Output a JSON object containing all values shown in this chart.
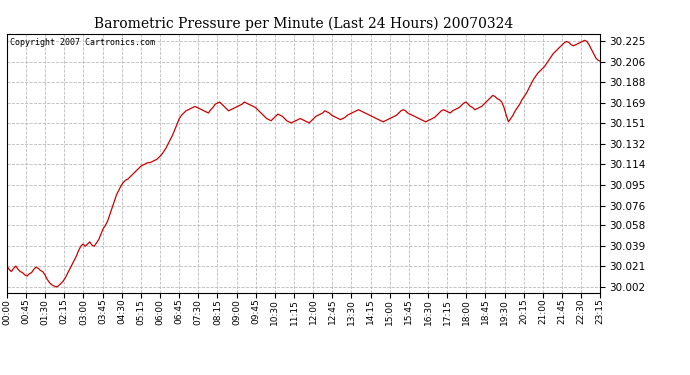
{
  "title": "Barometric Pressure per Minute (Last 24 Hours) 20070324",
  "copyright_text": "Copyright 2007 Cartronics.com",
  "line_color": "#cc0000",
  "background_color": "#ffffff",
  "plot_bg_color": "#ffffff",
  "grid_color": "#bbbbbb",
  "yticks": [
    30.002,
    30.021,
    30.039,
    30.058,
    30.076,
    30.095,
    30.114,
    30.132,
    30.151,
    30.169,
    30.188,
    30.206,
    30.225
  ],
  "ylim": [
    29.997,
    30.232
  ],
  "xtick_labels": [
    "00:00",
    "00:45",
    "01:30",
    "02:15",
    "03:00",
    "03:45",
    "04:30",
    "05:15",
    "06:00",
    "06:45",
    "07:30",
    "08:15",
    "09:00",
    "09:45",
    "10:30",
    "11:15",
    "12:00",
    "12:45",
    "13:30",
    "14:15",
    "15:00",
    "15:45",
    "16:30",
    "17:15",
    "18:00",
    "18:45",
    "19:30",
    "20:15",
    "21:00",
    "21:45",
    "22:30",
    "23:15"
  ],
  "pressure_data": [
    30.021,
    30.018,
    30.016,
    30.019,
    30.021,
    30.018,
    30.016,
    30.015,
    30.013,
    30.012,
    30.014,
    30.015,
    30.018,
    30.02,
    30.019,
    30.017,
    30.016,
    30.013,
    30.009,
    30.006,
    30.004,
    30.003,
    30.002,
    30.003,
    30.005,
    30.007,
    30.01,
    30.014,
    30.018,
    30.022,
    30.026,
    30.03,
    30.035,
    30.039,
    30.041,
    30.039,
    30.041,
    30.043,
    30.04,
    30.039,
    30.042,
    30.045,
    30.05,
    30.055,
    30.058,
    30.062,
    30.068,
    30.074,
    30.08,
    30.086,
    30.09,
    30.094,
    30.097,
    30.099,
    30.1,
    30.102,
    30.104,
    30.106,
    30.108,
    30.11,
    30.112,
    30.113,
    30.114,
    30.115,
    30.115,
    30.116,
    30.117,
    30.118,
    30.12,
    30.122,
    30.125,
    30.128,
    30.132,
    30.136,
    30.14,
    30.145,
    30.15,
    30.155,
    30.158,
    30.16,
    30.162,
    30.163,
    30.164,
    30.165,
    30.166,
    30.165,
    30.164,
    30.163,
    30.162,
    30.161,
    30.16,
    30.163,
    30.165,
    30.168,
    30.169,
    30.17,
    30.168,
    30.166,
    30.164,
    30.162,
    30.163,
    30.164,
    30.165,
    30.166,
    30.167,
    30.168,
    30.17,
    30.169,
    30.168,
    30.167,
    30.166,
    30.165,
    30.163,
    30.161,
    30.159,
    30.157,
    30.155,
    30.154,
    30.153,
    30.155,
    30.157,
    30.159,
    30.158,
    30.157,
    30.155,
    30.153,
    30.152,
    30.151,
    30.152,
    30.153,
    30.154,
    30.155,
    30.154,
    30.153,
    30.152,
    30.151,
    30.153,
    30.155,
    30.157,
    30.158,
    30.159,
    30.16,
    30.162,
    30.161,
    30.16,
    30.158,
    30.157,
    30.156,
    30.155,
    30.154,
    30.155,
    30.156,
    30.158,
    30.159,
    30.16,
    30.161,
    30.162,
    30.163,
    30.162,
    30.161,
    30.16,
    30.159,
    30.158,
    30.157,
    30.156,
    30.155,
    30.154,
    30.153,
    30.152,
    30.153,
    30.154,
    30.155,
    30.156,
    30.157,
    30.158,
    30.16,
    30.162,
    30.163,
    30.162,
    30.16,
    30.159,
    30.158,
    30.157,
    30.156,
    30.155,
    30.154,
    30.153,
    30.152,
    30.153,
    30.154,
    30.155,
    30.156,
    30.158,
    30.16,
    30.162,
    30.163,
    30.162,
    30.161,
    30.16,
    30.162,
    30.163,
    30.164,
    30.165,
    30.167,
    30.169,
    30.17,
    30.168,
    30.166,
    30.165,
    30.163,
    30.164,
    30.165,
    30.166,
    30.168,
    30.17,
    30.172,
    30.174,
    30.176,
    30.175,
    30.173,
    30.172,
    30.17,
    30.165,
    30.158,
    30.152,
    30.155,
    30.158,
    30.162,
    30.165,
    30.168,
    30.172,
    30.175,
    30.178,
    30.182,
    30.186,
    30.19,
    30.193,
    30.196,
    30.198,
    30.2,
    30.202,
    30.205,
    30.208,
    30.211,
    30.214,
    30.216,
    30.218,
    30.22,
    30.222,
    30.224,
    30.225,
    30.224,
    30.222,
    30.221,
    30.222,
    30.223,
    30.224,
    30.225,
    30.226,
    30.225,
    30.222,
    30.218,
    30.214,
    30.21,
    30.208,
    30.207
  ]
}
